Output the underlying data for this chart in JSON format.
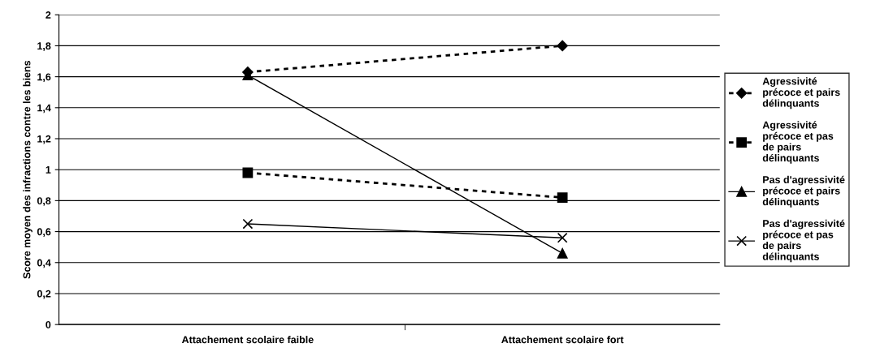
{
  "chart_data": {
    "type": "line",
    "ylabel": "Score moyen des infractions contre les biens",
    "categories": [
      "Attachement scolaire faible",
      "Attachement scolaire fort"
    ],
    "series": [
      {
        "name": "Agressivité\nprécoce et pairs\ndélinquants",
        "color": "#000000",
        "values": [
          1.63,
          1.8
        ],
        "marker": "diamond",
        "line_style": "dotted"
      },
      {
        "name": "Agressivité\nprécoce et pas\nde pairs\ndélinquants",
        "color": "#000000",
        "values": [
          0.98,
          0.82
        ],
        "marker": "square",
        "line_style": "dotted"
      },
      {
        "name": "Pas d'agressivité\nprécoce et pairs\ndélinquants",
        "color": "#000000",
        "values": [
          1.61,
          0.46
        ],
        "marker": "triangle",
        "line_style": "solid"
      },
      {
        "name": "Pas d'agressivité\nprécoce et pas\nde pairs\ndélinquants",
        "color": "#000000",
        "values": [
          0.65,
          0.56
        ],
        "marker": "cross",
        "line_style": "solid"
      }
    ],
    "ylim": [
      0,
      2
    ],
    "yticks": [
      0,
      {
        "value": 0.2,
        "label": "0,2"
      },
      {
        "value": 0.4,
        "label": "0,4"
      },
      {
        "value": 0.6,
        "label": "0,6"
      },
      {
        "value": 0.8,
        "label": "0,8"
      },
      1,
      {
        "value": 1.2,
        "label": "1,2"
      },
      {
        "value": 1.4,
        "label": "1,4"
      },
      {
        "value": 1.6,
        "label": "1,6"
      },
      {
        "value": 1.8,
        "label": "1,8"
      },
      2
    ],
    "grid": "y",
    "legend": "right"
  }
}
